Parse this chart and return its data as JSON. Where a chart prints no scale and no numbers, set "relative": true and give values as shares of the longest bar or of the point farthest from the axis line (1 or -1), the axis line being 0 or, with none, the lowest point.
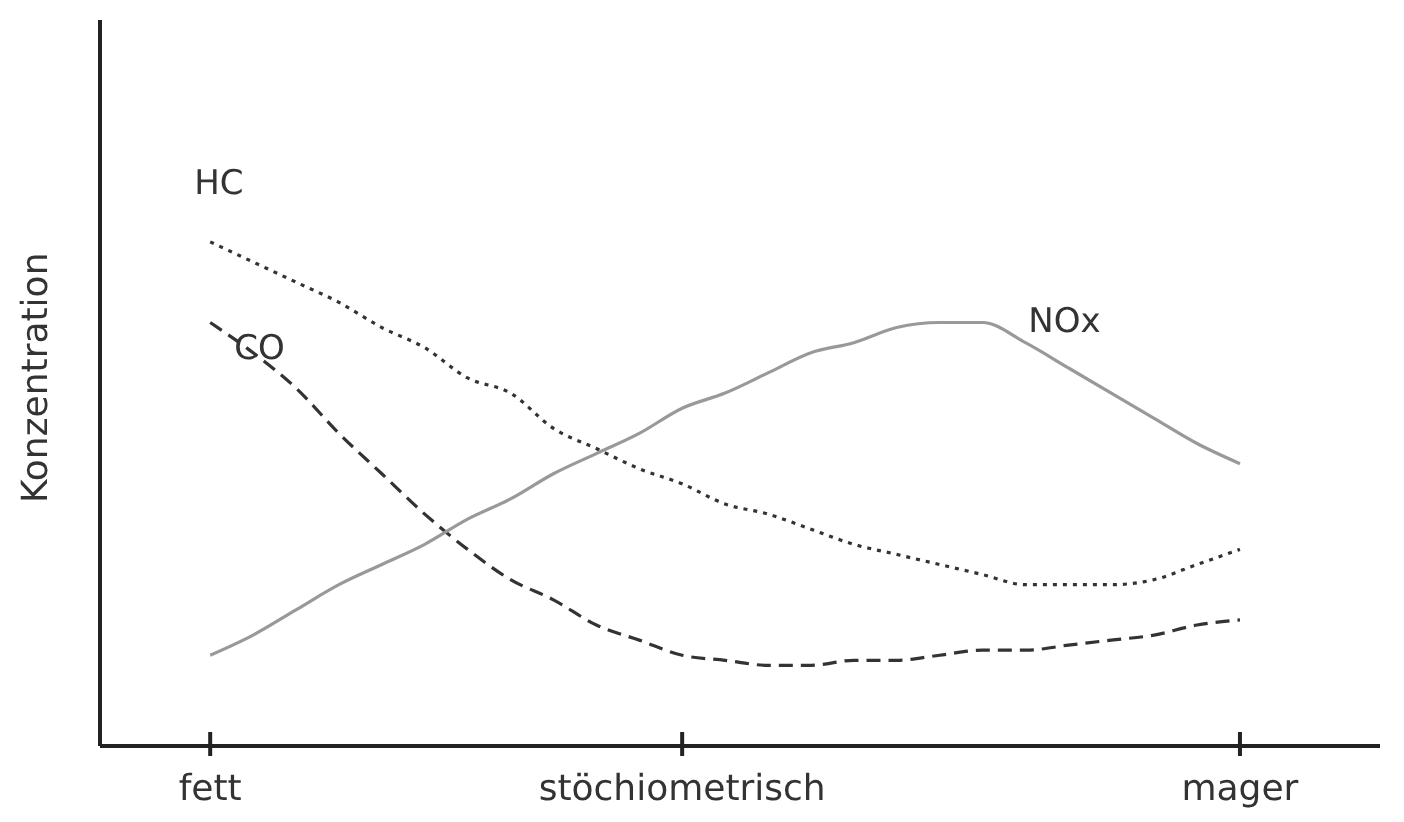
{
  "chart_data": {
    "type": "line",
    "relative": true,
    "ylabel": "Konzentration",
    "marker": "none",
    "categories": [
      "fett",
      null,
      null,
      null,
      null,
      null,
      null,
      null,
      null,
      null,
      null,
      "stöchiometrisch",
      null,
      null,
      null,
      null,
      null,
      null,
      null,
      null,
      null,
      null,
      null,
      null,
      "mager"
    ],
    "series": [
      {
        "name": "HC",
        "color": "#333333",
        "line_style": "dotted",
        "values": [
          1,
          0.96,
          0.92,
          0.88,
          0.83,
          0.79,
          0.73,
          0.7,
          0.63,
          0.59,
          0.55,
          0.52,
          0.48,
          0.46,
          0.43,
          0.4,
          0.38,
          0.36,
          0.34,
          0.32,
          0.32,
          0.32,
          0.33,
          0.36,
          0.39
        ]
      },
      {
        "name": "CO",
        "color": "#333333",
        "line_style": "dashed",
        "values": [
          0.84,
          0.78,
          0.71,
          0.62,
          0.54,
          0.46,
          0.39,
          0.33,
          0.29,
          0.24,
          0.21,
          0.18,
          0.17,
          0.16,
          0.16,
          0.17,
          0.17,
          0.18,
          0.19,
          0.19,
          0.2,
          0.21,
          0.22,
          0.24,
          0.25
        ]
      },
      {
        "name": "NOx",
        "color": "#999999",
        "line_style": "solid",
        "values": [
          0.18,
          0.22,
          0.27,
          0.32,
          0.36,
          0.4,
          0.45,
          0.49,
          0.54,
          0.58,
          0.62,
          0.67,
          0.7,
          0.74,
          0.78,
          0.8,
          0.83,
          0.84,
          0.84,
          0.8,
          0.75,
          0.7,
          0.65,
          0.6,
          0.56
        ]
      }
    ]
  }
}
